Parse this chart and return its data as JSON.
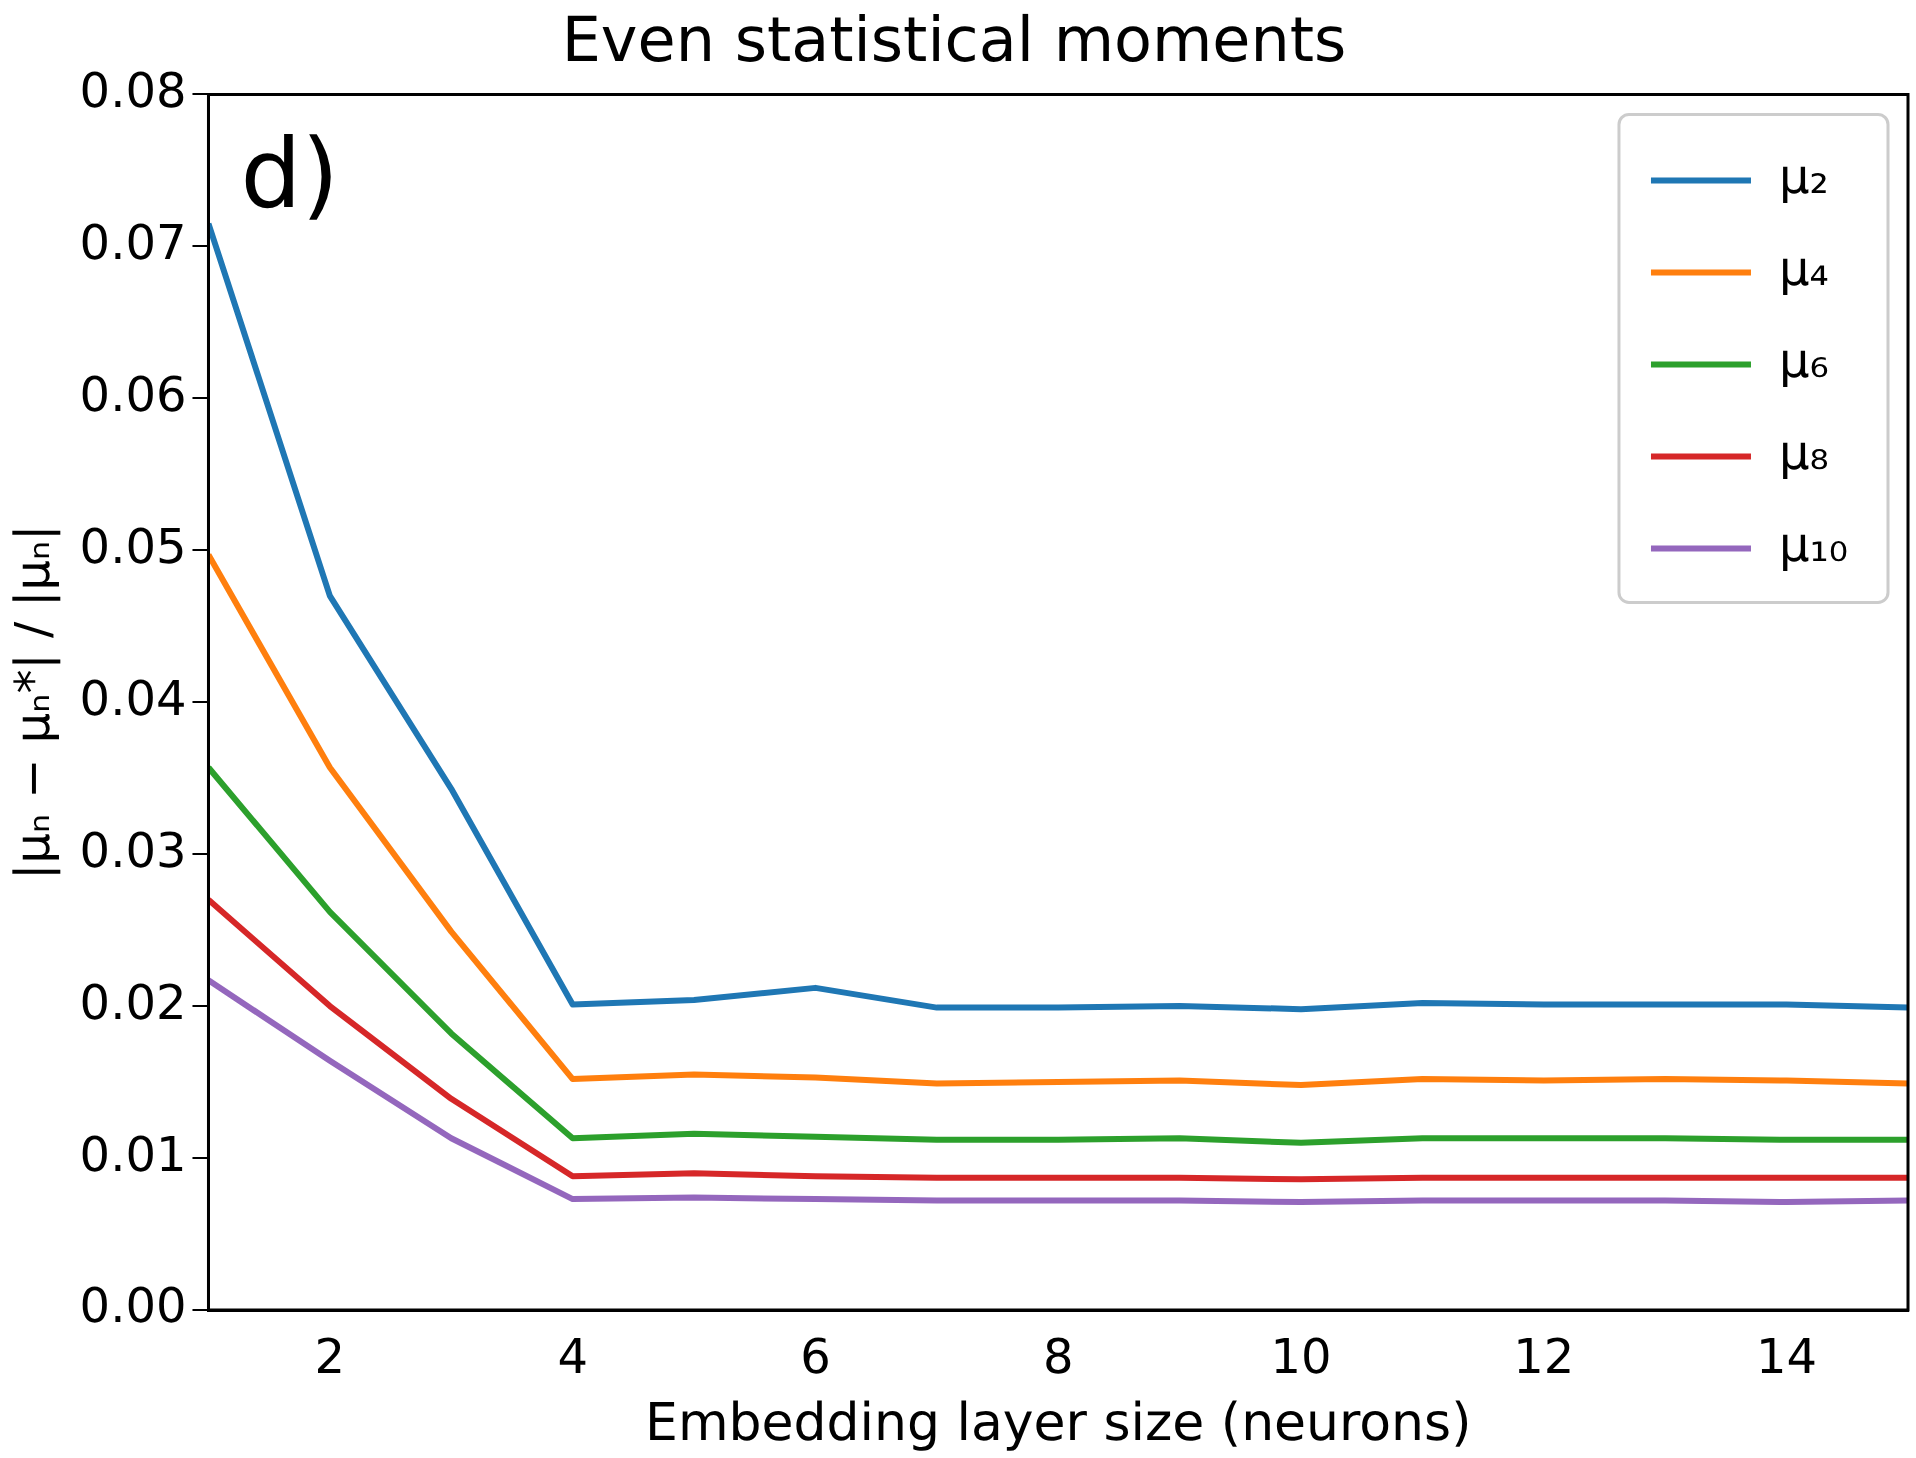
{
  "chart_data": {
    "type": "line",
    "title": "Even statistical moments",
    "xlabel": "Embedding layer size (neurons)",
    "ylabel": "|μₙ − μₙ*| / |μₙ|",
    "annotations": [
      "d)"
    ],
    "x": [
      1,
      2,
      3,
      4,
      5,
      6,
      7,
      8,
      9,
      10,
      11,
      12,
      13,
      14,
      15
    ],
    "xlim": [
      1,
      15
    ],
    "xticks": [
      2,
      4,
      6,
      8,
      10,
      12,
      14
    ],
    "ylim": [
      0,
      0.08
    ],
    "yticks": [
      {
        "value": 0,
        "label": "0.00"
      },
      0.01,
      0.02,
      0.03,
      0.04,
      0.05,
      0.06,
      0.07,
      0.08
    ],
    "grid": false,
    "legend": "top right",
    "marker": "none",
    "line_style": "solid",
    "series": [
      {
        "name": "μ₂",
        "color": "#1f77b4",
        "values": [
          0.0715,
          0.047,
          0.0343,
          0.0201,
          0.0204,
          0.0212,
          0.0199,
          0.0199,
          0.02,
          0.0198,
          0.0202,
          0.0201,
          0.0201,
          0.0201,
          0.0199
        ]
      },
      {
        "name": "μ₄",
        "color": "#ff7f0e",
        "values": [
          0.0497,
          0.0357,
          0.0249,
          0.0152,
          0.0155,
          0.0153,
          0.0149,
          0.015,
          0.0151,
          0.0148,
          0.0152,
          0.0151,
          0.0152,
          0.0151,
          0.0149
        ]
      },
      {
        "name": "μ₆",
        "color": "#2ca02c",
        "values": [
          0.0357,
          0.0262,
          0.0182,
          0.0113,
          0.0116,
          0.0114,
          0.0112,
          0.0112,
          0.0113,
          0.011,
          0.0113,
          0.0113,
          0.0113,
          0.0112,
          0.0112
        ]
      },
      {
        "name": "μ₈",
        "color": "#d62728",
        "values": [
          0.027,
          0.02,
          0.0139,
          0.0088,
          0.009,
          0.0088,
          0.0087,
          0.0087,
          0.0087,
          0.0086,
          0.0087,
          0.0087,
          0.0087,
          0.0087,
          0.0087
        ]
      },
      {
        "name": "μ₁₀",
        "color": "#9467bd",
        "values": [
          0.0217,
          0.0164,
          0.0113,
          0.0073,
          0.0074,
          0.0073,
          0.0072,
          0.0072,
          0.0072,
          0.0071,
          0.0072,
          0.0072,
          0.0072,
          0.0071,
          0.0072
        ]
      }
    ]
  }
}
